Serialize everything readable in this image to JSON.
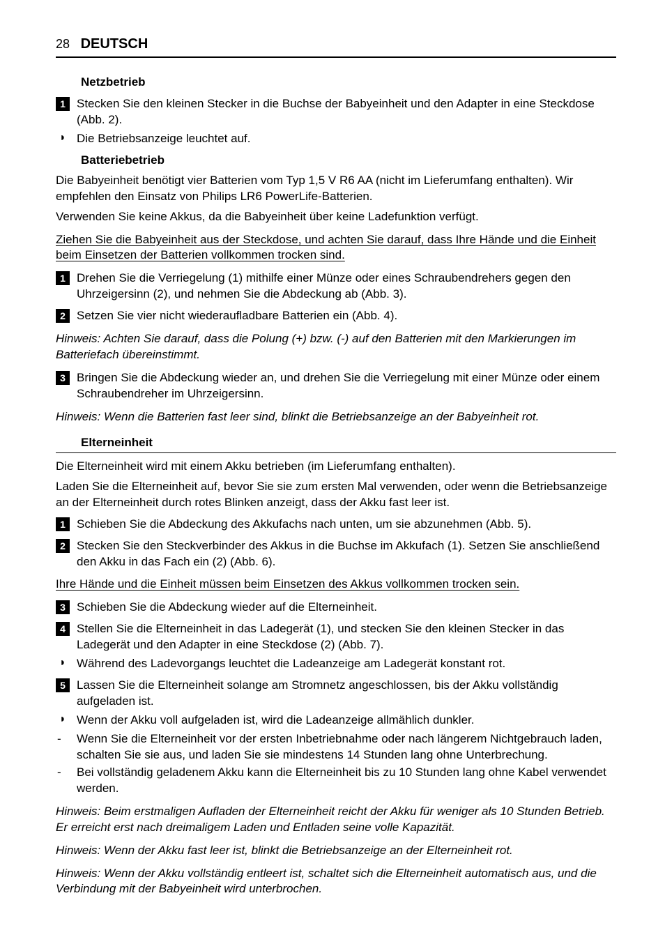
{
  "header": {
    "page_number": "28",
    "language": "DEUTSCH"
  },
  "headings": {
    "netzbetrieb": "Netzbetrieb",
    "batteriebetrieb": "Batteriebetrieb",
    "elterneinheit": "Elterneinheit"
  },
  "netz": {
    "step1": "Stecken Sie den kleinen Stecker in die Buchse der Babyeinheit und den Adapter in eine Steckdose (Abb. 2).",
    "bullet1": "Die Betriebsanzeige leuchtet auf."
  },
  "batterie": {
    "p1": "Die Babyeinheit benötigt vier Batterien vom Typ 1,5 V R6 AA (nicht im Lieferumfang enthalten). Wir empfehlen den Einsatz von Philips LR6 PowerLife-Batterien.",
    "p2": "Verwenden Sie keine Akkus, da die Babyeinheit über keine Ladefunktion verfügt.",
    "warn": "Ziehen Sie die Babyeinheit aus der Steckdose, und achten Sie darauf, dass Ihre Hände und die Einheit beim Einsetzen der Batterien vollkommen trocken sind.",
    "step1": "Drehen Sie die Verriegelung (1) mithilfe einer Münze oder eines Schraubendrehers gegen den Uhrzeigersinn (2), und nehmen Sie die Abdeckung ab (Abb. 3).",
    "step2": "Setzen Sie vier nicht wiederaufladbare Batterien ein (Abb. 4).",
    "note1": "Hinweis: Achten Sie darauf, dass die Polung (+) bzw. (-) auf den Batterien mit den Markierungen im Batteriefach übereinstimmt.",
    "step3": "Bringen Sie die Abdeckung wieder an, und drehen Sie die Verriegelung mit einer Münze oder einem Schraubendreher im Uhrzeigersinn.",
    "note2": "Hinweis: Wenn die Batterien fast leer sind, blinkt die Betriebsanzeige an der Babyeinheit rot."
  },
  "eltern": {
    "p1": "Die Elterneinheit wird mit einem Akku betrieben (im Lieferumfang enthalten).",
    "p2": "Laden Sie die Elterneinheit auf, bevor Sie sie zum ersten Mal verwenden, oder wenn die Betriebsanzeige an der Elterneinheit durch rotes Blinken anzeigt, dass der Akku fast leer ist.",
    "step1": "Schieben Sie die Abdeckung des Akkufachs nach unten, um sie abzunehmen (Abb. 5).",
    "step2": "Stecken Sie den Steckverbinder des Akkus in die Buchse im Akkufach (1). Setzen Sie anschließend den Akku in das Fach ein (2) (Abb. 6).",
    "warn": "Ihre Hände und die Einheit müssen beim Einsetzen des Akkus vollkommen trocken sein.",
    "step3": "Schieben Sie die Abdeckung wieder auf die Elterneinheit.",
    "step4": "Stellen Sie die Elterneinheit in das Ladegerät (1), und stecken Sie den kleinen Stecker in das Ladegerät und den Adapter in eine Steckdose (2) (Abb. 7).",
    "bullet4": "Während des Ladevorgangs leuchtet die Ladeanzeige am Ladegerät konstant rot.",
    "step5": "Lassen Sie die Elterneinheit solange am Stromnetz angeschlossen, bis der Akku vollständig aufgeladen ist.",
    "bullet5": "Wenn der Akku voll aufgeladen ist, wird die Ladeanzeige allmählich dunkler.",
    "dash1": "Wenn Sie die Elterneinheit vor der ersten Inbetriebnahme oder nach längerem Nichtgebrauch laden, schalten Sie sie aus, und laden Sie sie mindestens 14 Stunden lang ohne Unterbrechung.",
    "dash2": "Bei vollständig geladenem Akku kann die Elterneinheit bis zu 10 Stunden lang ohne Kabel verwendet werden.",
    "note1": "Hinweis: Beim erstmaligen Aufladen der Elterneinheit reicht der Akku für weniger als 10 Stunden Betrieb. Er erreicht erst nach dreimaligem Laden und Entladen seine volle Kapazität.",
    "note2": "Hinweis: Wenn der Akku fast leer ist, blinkt die Betriebsanzeige an der Elterneinheit rot.",
    "note3": "Hinweis: Wenn der Akku vollständig entleert ist, schaltet sich die Elterneinheit automatisch aus, und die Verbindung mit der Babyeinheit wird unterbrochen."
  },
  "markers": {
    "bullet": "◗",
    "dash": "-"
  },
  "nums": {
    "n1": "1",
    "n2": "2",
    "n3": "3",
    "n4": "4",
    "n5": "5"
  }
}
